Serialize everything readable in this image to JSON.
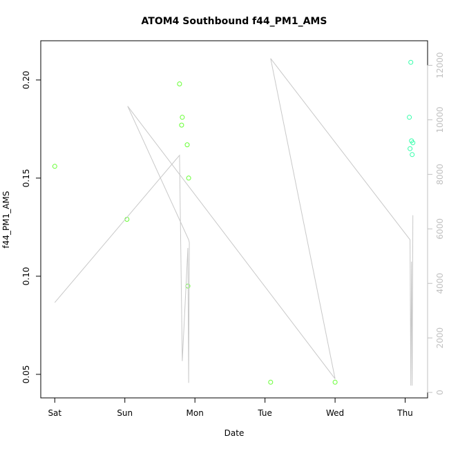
{
  "chart_data": {
    "type": "scatter",
    "title": "ATOM4 Southbound f44_PM1_AMS",
    "xlabel": "Date",
    "ylabel": "f44_PM1_AMS",
    "x_ticks": [
      "Sat",
      "Sun",
      "Mon",
      "Tue",
      "Wed",
      "Thu"
    ],
    "x_range_days": [
      -0.2,
      5.32
    ],
    "ylim": [
      0.038,
      0.22
    ],
    "y_ticks": [
      "0.05",
      "0.10",
      "0.15",
      "0.20"
    ],
    "y_tick_values": [
      0.05,
      0.1,
      0.15,
      0.2
    ],
    "y2lim": [
      -200,
      12900
    ],
    "y2_ticks": [
      "0",
      "2000",
      "4000",
      "6000",
      "8000",
      "10000",
      "12000"
    ],
    "y2_tick_values": [
      0,
      2000,
      4000,
      6000,
      8000,
      10000,
      12000
    ],
    "grid": false,
    "colors": {
      "points_early": "#66ff33",
      "points_late": "#33ffaa",
      "line": "#c8c8c8",
      "axis": "#000000",
      "right_axis": "#c0c0c0"
    },
    "series": [
      {
        "kind": "points",
        "color_key": "points_early",
        "points": [
          {
            "x": 0.0,
            "y": 0.156
          },
          {
            "x": 1.03,
            "y": 0.129
          },
          {
            "x": 1.78,
            "y": 0.198
          },
          {
            "x": 1.82,
            "y": 0.181
          },
          {
            "x": 1.81,
            "y": 0.177
          },
          {
            "x": 1.89,
            "y": 0.167
          },
          {
            "x": 1.91,
            "y": 0.15
          },
          {
            "x": 1.9,
            "y": 0.095
          },
          {
            "x": 3.08,
            "y": 0.046
          },
          {
            "x": 4.0,
            "y": 0.046
          }
        ]
      },
      {
        "kind": "points",
        "color_key": "points_late",
        "points": [
          {
            "x": 5.08,
            "y": 0.209
          },
          {
            "x": 5.06,
            "y": 0.181
          },
          {
            "x": 5.09,
            "y": 0.169
          },
          {
            "x": 5.11,
            "y": 0.168
          },
          {
            "x": 5.07,
            "y": 0.165
          },
          {
            "x": 5.1,
            "y": 0.162
          }
        ]
      },
      {
        "kind": "line",
        "axis": "right",
        "color_key": "line",
        "points": [
          {
            "x": 0.0,
            "y": 3300
          },
          {
            "x": 1.78,
            "y": 8700
          },
          {
            "x": 1.82,
            "y": 1150
          },
          {
            "x": 1.9,
            "y": 5300
          },
          {
            "x": 1.91,
            "y": 350
          },
          {
            "x": 1.92,
            "y": 5500
          },
          {
            "x": 1.91,
            "y": 5600
          },
          {
            "x": 1.04,
            "y": 10500
          },
          {
            "x": 4.0,
            "y": 500
          },
          {
            "x": 3.08,
            "y": 12250
          },
          {
            "x": 5.07,
            "y": 5600
          },
          {
            "x": 5.08,
            "y": 250
          },
          {
            "x": 5.09,
            "y": 4800
          },
          {
            "x": 5.1,
            "y": 250
          },
          {
            "x": 5.11,
            "y": 6500
          }
        ]
      }
    ]
  }
}
